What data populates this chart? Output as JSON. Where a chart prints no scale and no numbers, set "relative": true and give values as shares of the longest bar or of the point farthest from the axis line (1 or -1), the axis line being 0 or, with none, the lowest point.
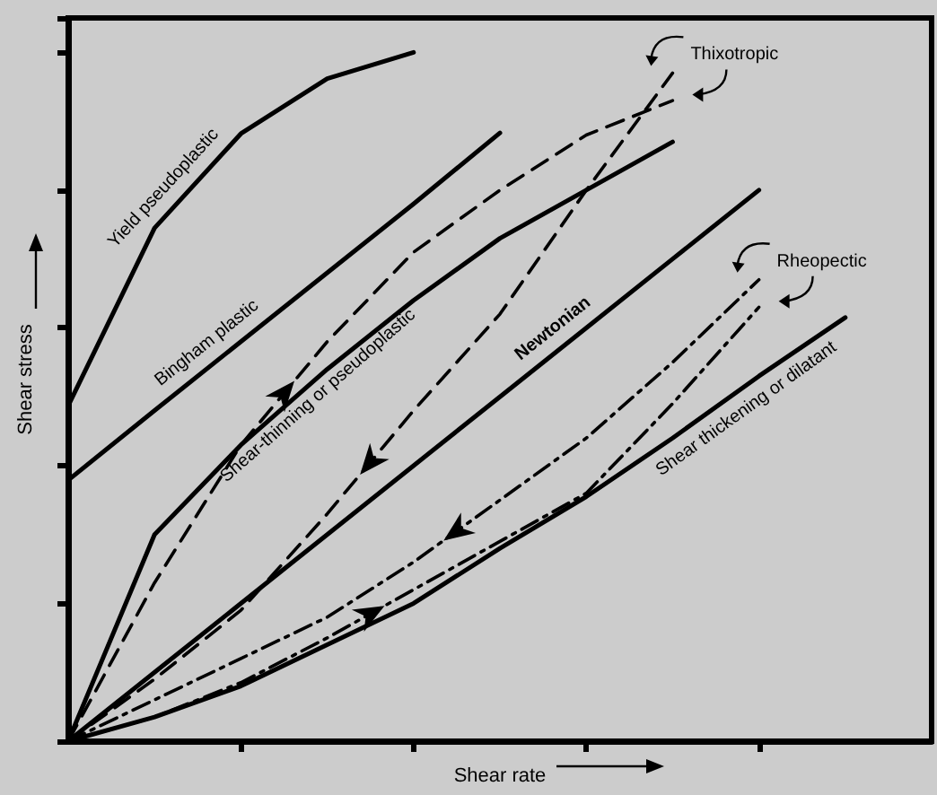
{
  "chart_data": {
    "type": "line",
    "relative": true,
    "xlabel": "Shear rate",
    "ylabel": "Shear stress",
    "categories": [
      null,
      null,
      null,
      null,
      null,
      null,
      null,
      null,
      null,
      null,
      null
    ],
    "grid": false,
    "marker": "none",
    "annotations": [
      "Thixotropic",
      "Rheopectic"
    ],
    "series": [
      {
        "name": "Yield pseudoplastic",
        "color": "#000000",
        "line_style": "solid",
        "values": [
          0.487,
          0.745,
          0.882,
          0.962,
          1,
          null,
          null,
          null,
          null,
          null,
          null
        ]
      },
      {
        "name": "Bingham plastic",
        "color": "#000000",
        "line_style": "solid",
        "values": [
          0.379,
          0.48,
          0.58,
          0.68,
          0.78,
          0.883,
          null,
          null,
          null,
          null,
          null
        ]
      },
      {
        "name": "Shear-thinning or pseudoplastic",
        "color": "#000000",
        "line_style": "solid",
        "values": [
          0,
          0.3,
          0.43,
          0.54,
          0.64,
          0.73,
          0.8,
          0.87,
          null,
          null,
          null
        ]
      },
      {
        "name": "Newtonian",
        "color": "#000000",
        "line_style": "solid",
        "values": [
          0,
          0.1,
          0.2,
          0.3,
          0.4,
          0.5,
          0.6,
          0.7,
          0.8,
          null,
          null
        ]
      },
      {
        "name": "Shear thickening or dilatant",
        "color": "#000000",
        "line_style": "solid",
        "values": [
          0,
          0.035,
          0.08,
          0.14,
          0.2,
          0.28,
          0.355,
          0.44,
          0.53,
          0.615,
          null
        ]
      },
      {
        "color": "#000000",
        "line_style": "dashed",
        "values": [
          0,
          0.23,
          0.43,
          0.58,
          0.71,
          0.8,
          0.88,
          0.93,
          null,
          null,
          null
        ]
      },
      {
        "color": "#000000",
        "line_style": "dashed",
        "values": [
          0,
          0.09,
          0.19,
          0.33,
          0.48,
          0.62,
          0.8,
          0.97,
          null,
          null,
          null
        ]
      },
      {
        "color": "#000000",
        "line_style": "dotted",
        "values": [
          0,
          0.035,
          0.085,
          0.15,
          0.22,
          0.29,
          0.36,
          0.49,
          0.63,
          null,
          null
        ]
      },
      {
        "color": "#000000",
        "line_style": "dotted",
        "values": [
          0,
          0.06,
          0.12,
          0.18,
          0.26,
          0.35,
          0.44,
          0.55,
          0.67,
          null,
          null
        ]
      }
    ]
  }
}
